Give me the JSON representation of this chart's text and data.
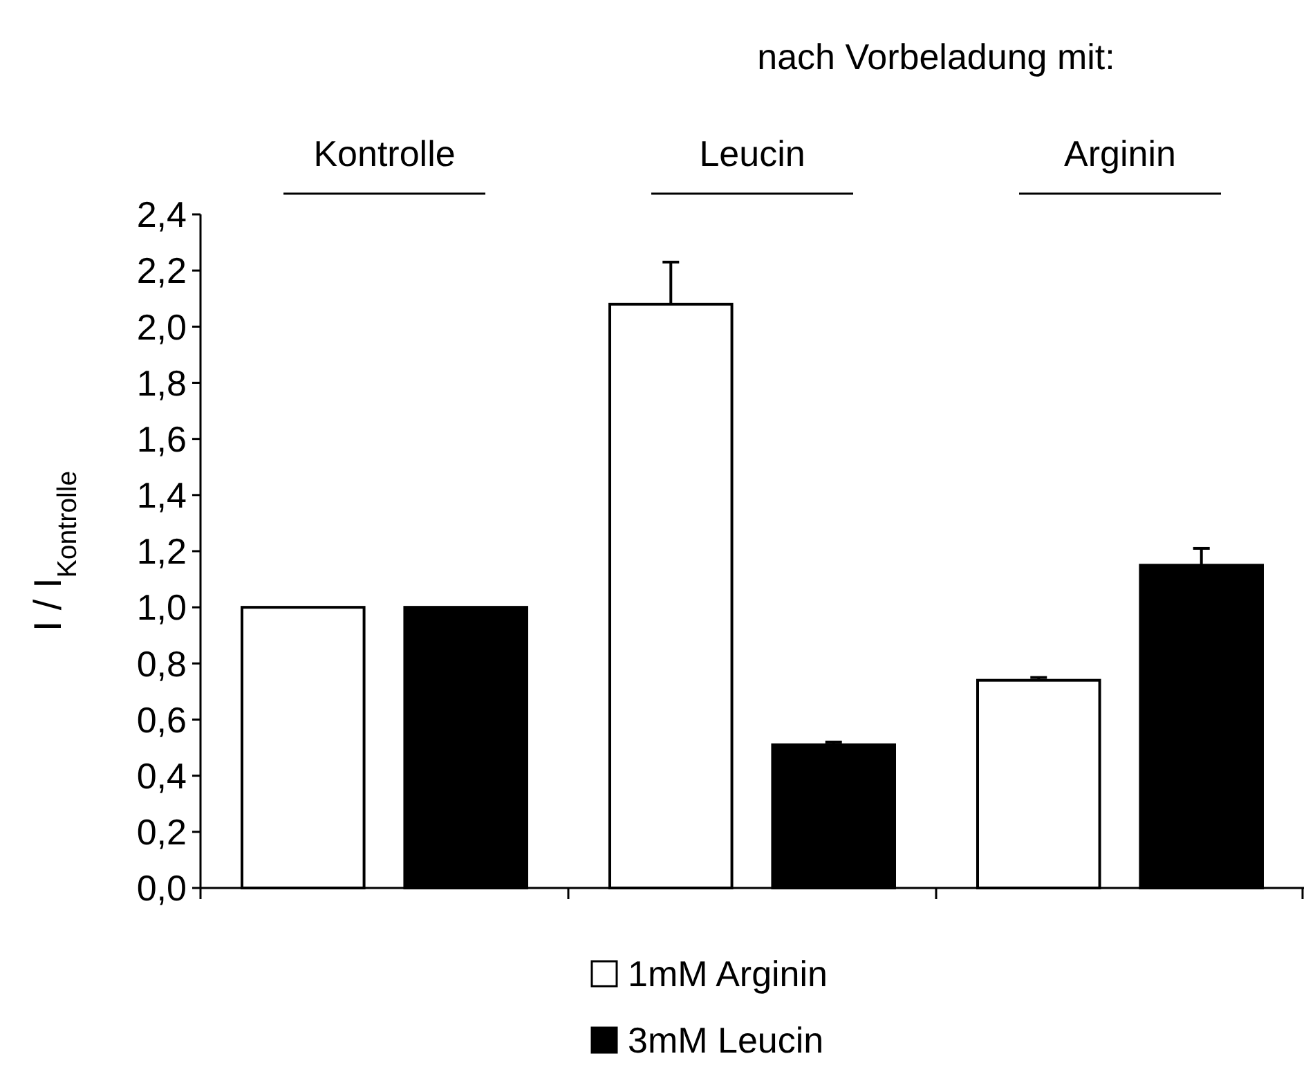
{
  "chart_data": {
    "type": "bar",
    "title": "nach Vorbeladung mit:",
    "ylabel": "I / I$_{Kontrolle}$",
    "categories": [
      "Kontrolle",
      "Leucin",
      "Arginin"
    ],
    "series": [
      {
        "name": "1mM Arginin",
        "color": "#ffffff",
        "values": [
          1.0,
          2.08,
          0.74
        ],
        "errors": [
          null,
          0.15,
          0.01
        ]
      },
      {
        "name": "3mM Leucin",
        "color": "#000000",
        "values": [
          1.0,
          0.51,
          1.15
        ],
        "errors": [
          null,
          0.01,
          0.06
        ]
      }
    ],
    "ylim": [
      0,
      2.4
    ],
    "yticks": [
      {
        "value": 0,
        "label": "0,0"
      },
      {
        "value": 0.2,
        "label": "0,2"
      },
      {
        "value": 0.4,
        "label": "0,4"
      },
      {
        "value": 0.6,
        "label": "0,6"
      },
      {
        "value": 0.8,
        "label": "0,8"
      },
      {
        "value": 1,
        "label": "1,0"
      },
      {
        "value": 1.2,
        "label": "1,2"
      },
      {
        "value": 1.4,
        "label": "1,4"
      },
      {
        "value": 1.6,
        "label": "1,6"
      },
      {
        "value": 1.8,
        "label": "1,8"
      },
      {
        "value": 2,
        "label": "2,0"
      },
      {
        "value": 2.2,
        "label": "2,2"
      },
      {
        "value": 2.4,
        "label": "2,4"
      }
    ],
    "grid": false,
    "legend": "bottom"
  }
}
